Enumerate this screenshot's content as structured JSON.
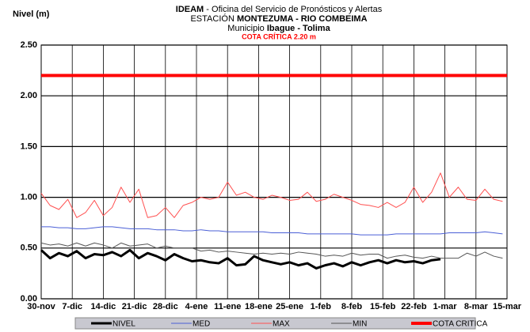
{
  "chart_data": {
    "type": "line",
    "title": {
      "bold": "IDEAM",
      "rest": " - Oficina del Servicio de Pronósticos y Alertas"
    },
    "subtitle": {
      "prefix": "ESTACIÓN ",
      "bold": "MONTEZUMA  - RIO COMBEIMA"
    },
    "municipio": {
      "prefix": "Municipio ",
      "bold": "Ibague - Tolima"
    },
    "annotation": "COTA CRÍTICA 2.20 m",
    "y_label": "Nivel (m)",
    "grid": true,
    "legend": "bottom",
    "xlim": [
      0,
      105
    ],
    "xticks": [
      {
        "value": 0,
        "label": "30-nov"
      },
      {
        "value": 7,
        "label": "7-dic"
      },
      {
        "value": 14,
        "label": "14-dic"
      },
      {
        "value": 21,
        "label": "21-dic"
      },
      {
        "value": 28,
        "label": "28-dic"
      },
      {
        "value": 35,
        "label": "4-ene"
      },
      {
        "value": 42,
        "label": "11-ene"
      },
      {
        "value": 49,
        "label": "18-ene"
      },
      {
        "value": 56,
        "label": "25-ene"
      },
      {
        "value": 63,
        "label": "1-feb"
      },
      {
        "value": 70,
        "label": "8-feb"
      },
      {
        "value": 77,
        "label": "15-feb"
      },
      {
        "value": 84,
        "label": "22-feb"
      },
      {
        "value": 91,
        "label": "1-mar"
      },
      {
        "value": 98,
        "label": "8-mar"
      },
      {
        "value": 105,
        "label": "15-mar"
      }
    ],
    "ylim": [
      0,
      2.5
    ],
    "yticks": [
      {
        "value": 0,
        "label": "0.00"
      },
      {
        "value": 0.5,
        "label": "0.50"
      },
      {
        "value": 1,
        "label": "1.00"
      },
      {
        "value": 1.5,
        "label": "1.50"
      },
      {
        "value": 2,
        "label": "2.00"
      },
      {
        "value": 2.5,
        "label": "2.50"
      }
    ],
    "x": [
      0,
      2,
      4,
      6,
      8,
      10,
      12,
      14,
      16,
      18,
      20,
      22,
      24,
      26,
      28,
      30,
      32,
      34,
      36,
      38,
      40,
      42,
      44,
      46,
      48,
      50,
      52,
      54,
      56,
      58,
      60,
      62,
      64,
      66,
      68,
      70,
      72,
      74,
      76,
      78,
      80,
      82,
      84,
      86,
      88,
      90,
      92,
      94,
      96,
      98,
      100,
      102,
      104
    ],
    "series": [
      {
        "name": "NIVEL",
        "color": "#000000",
        "width": 3,
        "values": [
          0.48,
          0.4,
          0.45,
          0.42,
          0.47,
          0.4,
          0.44,
          0.43,
          0.46,
          0.42,
          0.48,
          0.4,
          0.45,
          0.42,
          0.38,
          0.44,
          0.4,
          0.37,
          0.38,
          0.36,
          0.35,
          0.4,
          0.33,
          0.34,
          0.42,
          0.38,
          0.36,
          0.34,
          0.36,
          0.33,
          0.35,
          0.3,
          0.33,
          0.35,
          0.32,
          0.36,
          0.33,
          0.36,
          0.38,
          0.35,
          0.38,
          0.36,
          0.37,
          0.35,
          0.38,
          0.39,
          null,
          null,
          null,
          null,
          null,
          null,
          null
        ]
      },
      {
        "name": "MED",
        "color": "#4a5fd6",
        "width": 1,
        "values": [
          0.71,
          0.71,
          0.7,
          0.7,
          0.69,
          0.69,
          0.7,
          0.71,
          0.71,
          0.7,
          0.69,
          0.69,
          0.69,
          0.68,
          0.68,
          0.68,
          0.67,
          0.67,
          0.68,
          0.67,
          0.67,
          0.66,
          0.66,
          0.66,
          0.66,
          0.66,
          0.65,
          0.65,
          0.65,
          0.65,
          0.64,
          0.64,
          0.64,
          0.64,
          0.64,
          0.64,
          0.63,
          0.63,
          0.63,
          0.63,
          0.64,
          0.64,
          0.64,
          0.64,
          0.64,
          0.64,
          0.65,
          0.65,
          0.65,
          0.65,
          0.66,
          0.65,
          0.64
        ]
      },
      {
        "name": "MAX",
        "color": "#ff5050",
        "width": 1,
        "values": [
          1.04,
          0.92,
          0.88,
          0.98,
          0.8,
          0.85,
          0.97,
          0.82,
          0.9,
          1.1,
          0.95,
          1.08,
          0.8,
          0.82,
          0.9,
          0.8,
          0.92,
          0.95,
          1.0,
          0.98,
          1.0,
          1.15,
          1.02,
          1.05,
          1.0,
          0.98,
          1.02,
          1.0,
          0.97,
          0.98,
          1.05,
          0.96,
          0.98,
          1.03,
          1.0,
          0.97,
          0.93,
          0.92,
          0.9,
          0.95,
          0.9,
          0.95,
          1.1,
          0.95,
          1.05,
          1.24,
          1.0,
          1.1,
          0.98,
          0.97,
          1.08,
          0.98,
          0.96
        ]
      },
      {
        "name": "MIN",
        "color": "#555555",
        "width": 1,
        "values": [
          0.55,
          0.53,
          0.54,
          0.52,
          0.55,
          0.52,
          0.55,
          0.53,
          0.5,
          0.55,
          0.52,
          0.53,
          0.54,
          0.5,
          0.52,
          0.5,
          0.5,
          0.5,
          0.47,
          0.48,
          0.46,
          0.47,
          0.46,
          0.45,
          0.44,
          0.45,
          0.44,
          0.45,
          0.44,
          0.46,
          0.45,
          0.44,
          0.42,
          0.43,
          0.42,
          0.45,
          0.43,
          0.44,
          0.44,
          0.4,
          0.42,
          0.43,
          0.41,
          0.4,
          0.42,
          0.4,
          0.4,
          0.4,
          0.45,
          0.42,
          0.46,
          0.42,
          0.4
        ]
      },
      {
        "name": "COTA CRITICA",
        "color": "#ff0000",
        "width": 4,
        "x": [
          0,
          105
        ],
        "values": [
          2.2,
          2.2
        ]
      }
    ]
  }
}
